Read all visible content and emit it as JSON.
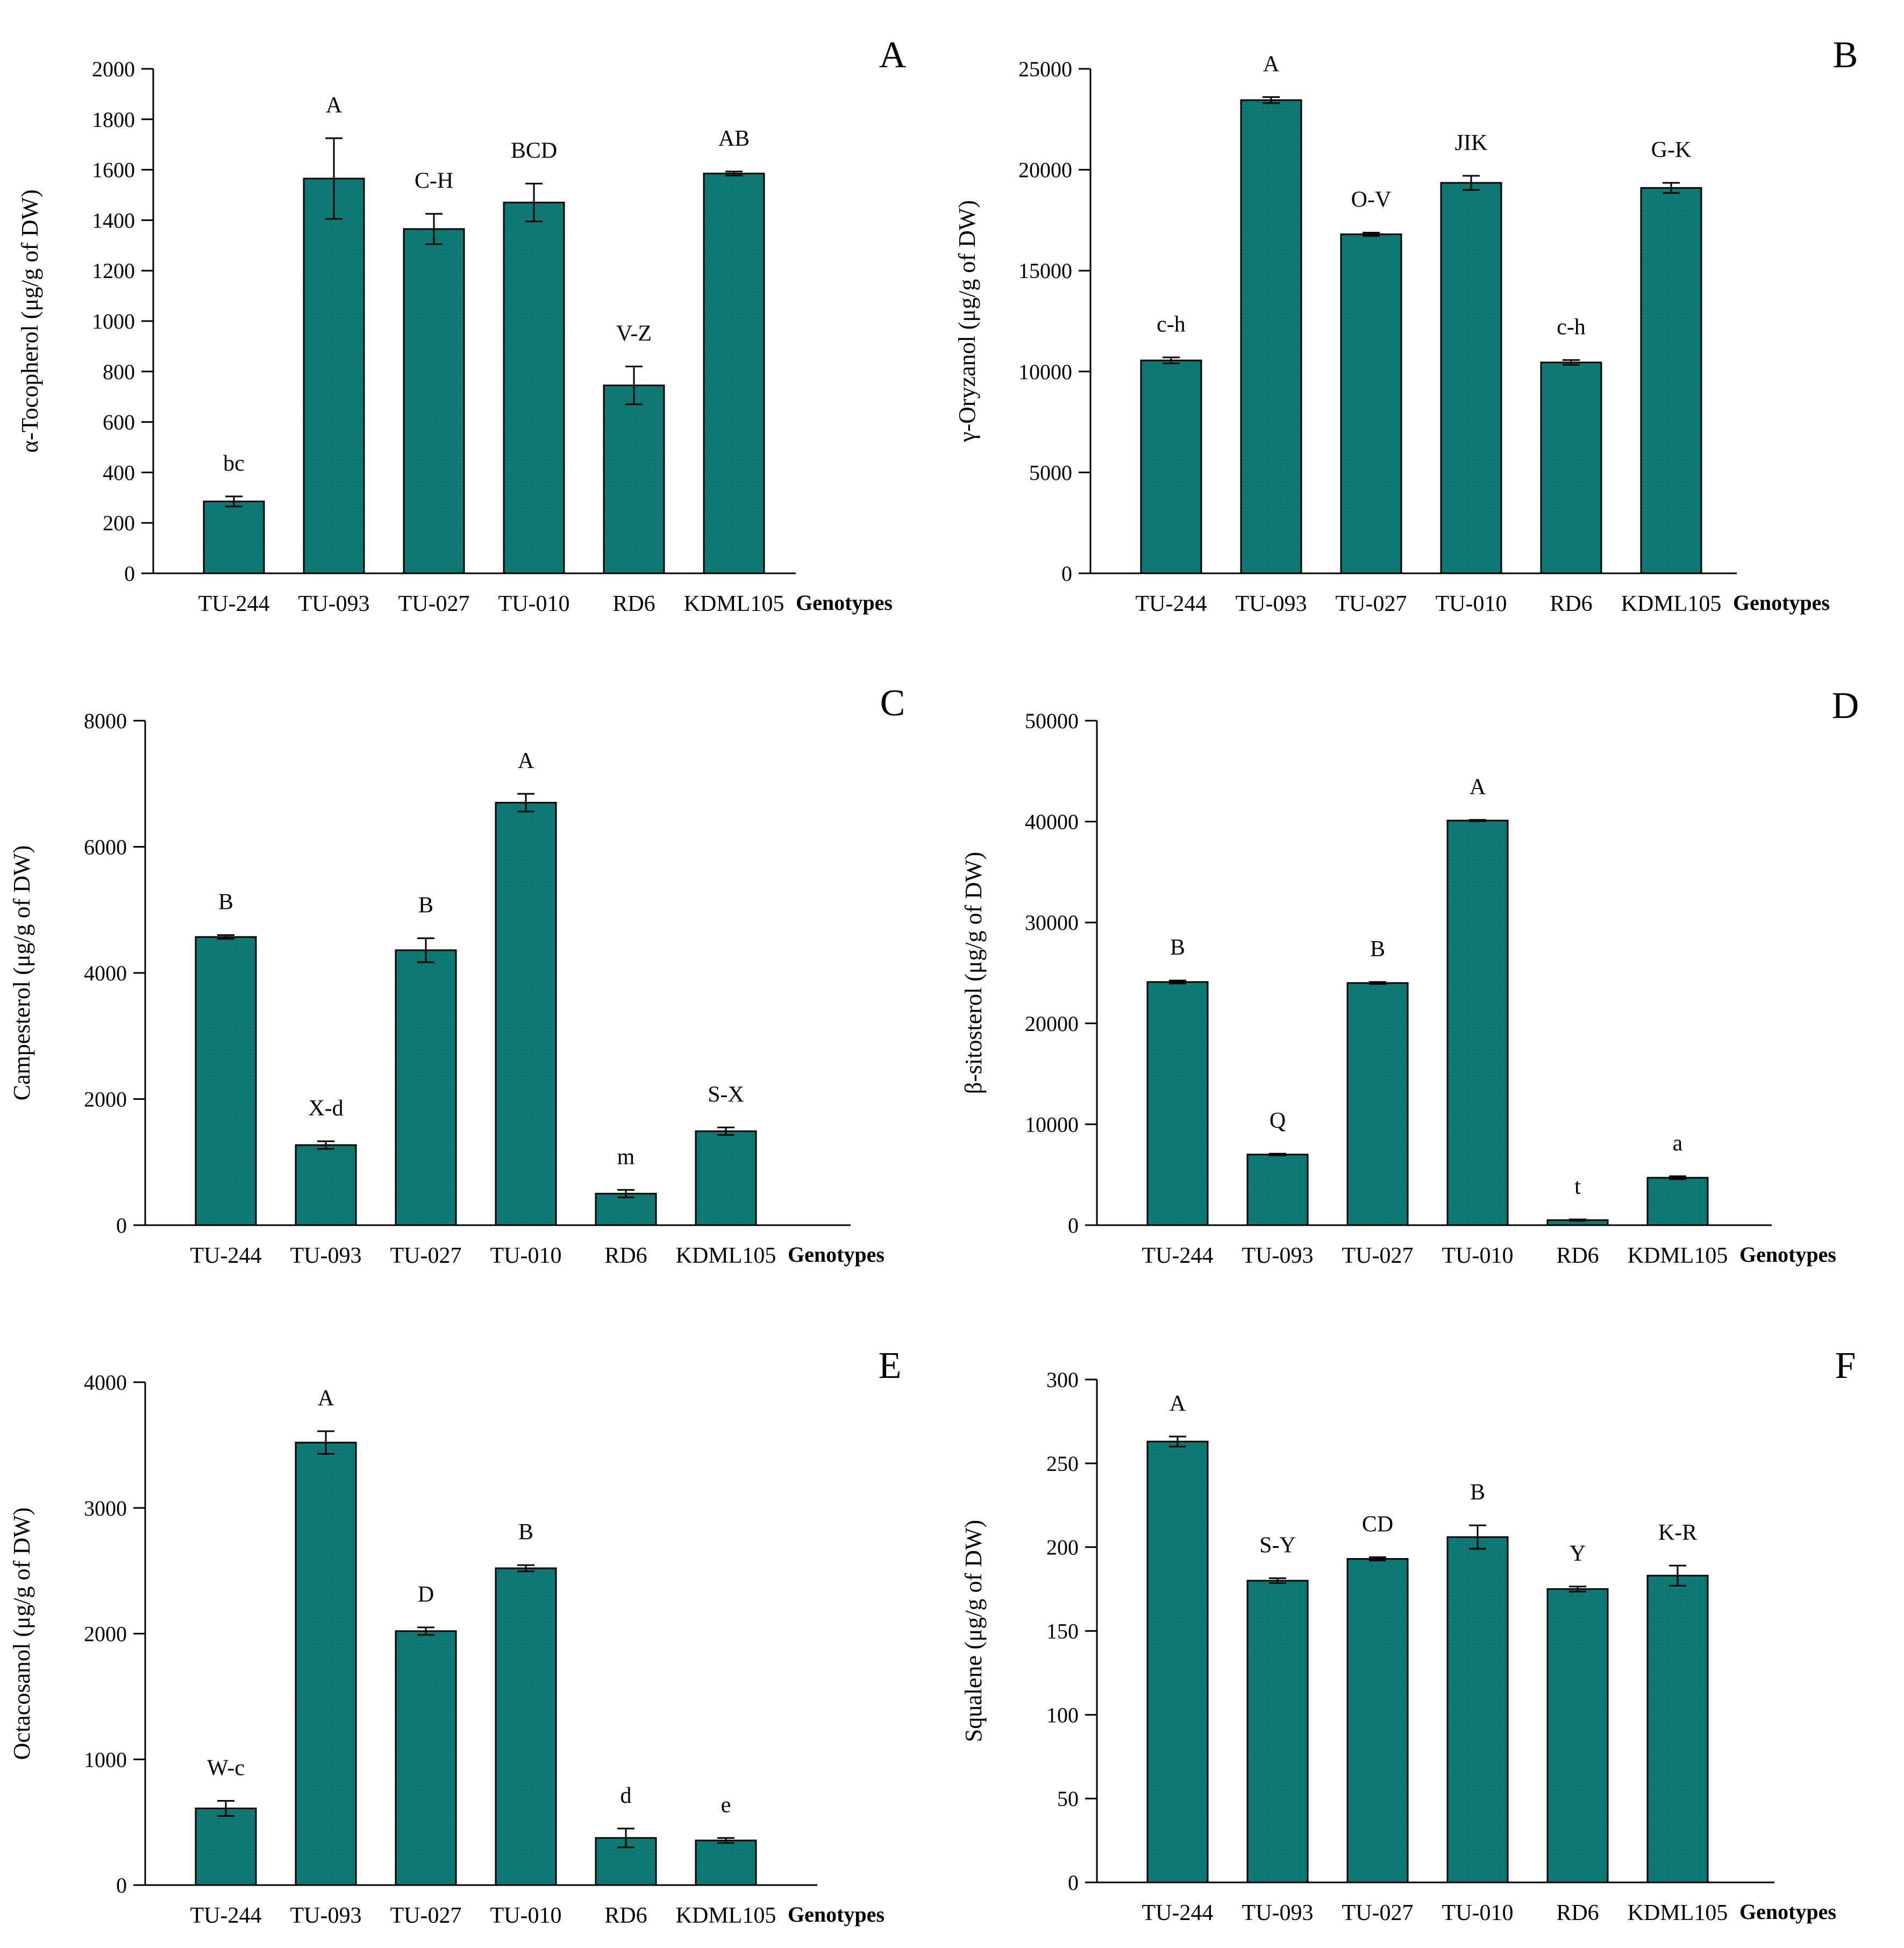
{
  "chart_data": [
    {
      "type": "bar",
      "panel": "A",
      "categories": [
        "TU-244",
        "TU-093",
        "TU-027",
        "TU-010",
        "RD6",
        "KDML105"
      ],
      "values": [
        285,
        1565,
        1365,
        1470,
        745,
        1585
      ],
      "errors": [
        20,
        160,
        60,
        75,
        75,
        8
      ],
      "significance": [
        "bc",
        "A",
        "C-H",
        "BCD",
        "V-Z",
        "AB"
      ],
      "ylabel": "α-Tocopherol (μg/g of DW)",
      "xlabel": "Genotypes",
      "ylim": [
        0,
        2000
      ],
      "yticks": [
        0,
        200,
        400,
        600,
        800,
        1000,
        1200,
        1400,
        1600,
        1800,
        2000
      ],
      "bar_color": "#0e7a73"
    },
    {
      "type": "bar",
      "panel": "B",
      "categories": [
        "TU-244",
        "TU-093",
        "TU-027",
        "TU-010",
        "RD6",
        "KDML105"
      ],
      "values": [
        10550,
        23450,
        16800,
        19350,
        10450,
        19100
      ],
      "errors": [
        150,
        150,
        80,
        350,
        120,
        250
      ],
      "significance": [
        "c-h",
        "A",
        "O-V",
        "JIK",
        "c-h",
        "G-K"
      ],
      "ylabel": "γ-Oryzanol (μg/g of DW)",
      "xlabel": "Genotypes",
      "ylim": [
        0,
        25000
      ],
      "yticks": [
        0,
        5000,
        10000,
        15000,
        20000,
        25000
      ],
      "bar_color": "#0e7a73"
    },
    {
      "type": "bar",
      "panel": "C",
      "categories": [
        "TU-244",
        "TU-093",
        "TU-027",
        "TU-010",
        "RD6",
        "KDML105"
      ],
      "values": [
        4570,
        1270,
        4360,
        6700,
        500,
        1490
      ],
      "errors": [
        30,
        60,
        190,
        140,
        60,
        60
      ],
      "significance": [
        "B",
        "X-d",
        "B",
        "A",
        "m",
        "S-X"
      ],
      "ylabel": "Campesterol (μg/g of DW)",
      "xlabel": "Genotypes",
      "ylim": [
        0,
        8000
      ],
      "yticks": [
        0,
        2000,
        4000,
        6000,
        8000
      ],
      "bar_color": "#0e7a73"
    },
    {
      "type": "bar",
      "panel": "D",
      "categories": [
        "TU-244",
        "TU-093",
        "TU-027",
        "TU-010",
        "RD6",
        "KDML105"
      ],
      "values": [
        24100,
        7000,
        24000,
        40100,
        500,
        4700
      ],
      "errors": [
        150,
        80,
        100,
        70,
        70,
        150
      ],
      "significance": [
        "B",
        "Q",
        "B",
        "A",
        "t",
        "a"
      ],
      "ylabel": "β-sitosterol (μg/g of DW)",
      "xlabel": "Genotypes",
      "ylim": [
        0,
        50000
      ],
      "yticks": [
        0,
        10000,
        20000,
        30000,
        40000,
        50000
      ],
      "bar_color": "#0e7a73"
    },
    {
      "type": "bar",
      "panel": "E",
      "categories": [
        "TU-244",
        "TU-093",
        "TU-027",
        "TU-010",
        "RD6",
        "KDML105"
      ],
      "values": [
        610,
        3520,
        2020,
        2520,
        375,
        355
      ],
      "errors": [
        60,
        90,
        30,
        25,
        75,
        20
      ],
      "significance": [
        "W-c",
        "A",
        "D",
        "B",
        "d",
        "e"
      ],
      "ylabel": "Octacosanol (μg/g of DW)",
      "xlabel": "Genotypes",
      "ylim": [
        0,
        4000
      ],
      "yticks": [
        0,
        1000,
        2000,
        3000,
        4000
      ],
      "bar_color": "#0e7a73"
    },
    {
      "type": "bar",
      "panel": "F",
      "categories": [
        "TU-244",
        "TU-093",
        "TU-027",
        "TU-010",
        "RD6",
        "KDML105"
      ],
      "values": [
        263,
        180,
        193,
        206,
        175,
        183
      ],
      "errors": [
        3,
        1.5,
        1,
        7,
        1.5,
        6
      ],
      "significance": [
        "A",
        "S-Y",
        "CD",
        "B",
        "Y",
        "K-R"
      ],
      "ylabel": "Squalene (μg/g of DW)",
      "xlabel": "Genotypes",
      "ylim": [
        0,
        300
      ],
      "yticks": [
        0,
        50,
        100,
        150,
        200,
        250,
        300
      ],
      "bar_color": "#0e7a73"
    }
  ]
}
